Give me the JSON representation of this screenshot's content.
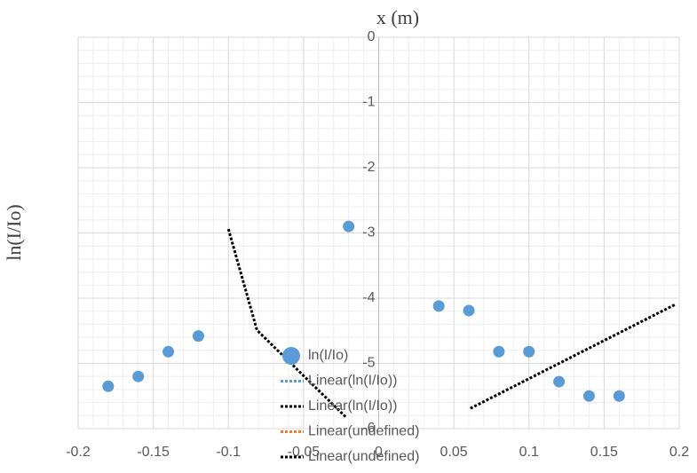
{
  "chart_data": {
    "type": "scatter",
    "x_label": "x (m)",
    "y_label": "ln(I/Io)",
    "xlim": [
      -0.2,
      0.2
    ],
    "ylim": [
      -6,
      0
    ],
    "xticks": [
      -0.2,
      -0.15,
      -0.1,
      -0.05,
      0,
      0.05,
      0.1,
      0.15,
      0.2
    ],
    "yticks": [
      0,
      -1,
      -2,
      -3,
      -4,
      -5,
      -6
    ],
    "grid": true,
    "minor_grid": true,
    "series": [
      {
        "name": "ln(I/Io)",
        "color": "#5b9bd5",
        "kind": "points",
        "x": [
          -0.18,
          -0.16,
          -0.14,
          -0.12,
          -0.02,
          0.04,
          0.06,
          0.08,
          0.1,
          0.12,
          0.14,
          0.16
        ],
        "values": [
          -5.35,
          -5.2,
          -4.82,
          -4.58,
          -2.9,
          -4.12,
          -4.19,
          -4.82,
          -4.82,
          -5.28,
          -5.5,
          -5.5
        ]
      },
      {
        "name": "Linear(ln(I/Io))",
        "color": "#000000",
        "kind": "dotted",
        "x": [
          -0.1,
          -0.081,
          -0.022
        ],
        "values": [
          -2.94,
          -4.49,
          -5.82
        ]
      },
      {
        "name": "Linear(undefined)",
        "color": "#000000",
        "kind": "dotted",
        "x": [
          0.061,
          0.197
        ],
        "values": [
          -5.69,
          -4.1
        ]
      }
    ],
    "legend": [
      {
        "name": "ln(I/Io)",
        "color": "#5b9bd5",
        "marker": "dot"
      },
      {
        "name": "Linear(ln(I/Io))",
        "color": "#5b9bd5",
        "marker": "dotted"
      },
      {
        "name": "Linear(ln(I/Io))",
        "color": "#000000",
        "marker": "dotted"
      },
      {
        "name": "Linear(undefined)",
        "color": "#ed7d31",
        "marker": "dotted"
      },
      {
        "name": "Linear(undefined)",
        "color": "#000000",
        "marker": "dotted"
      }
    ]
  }
}
